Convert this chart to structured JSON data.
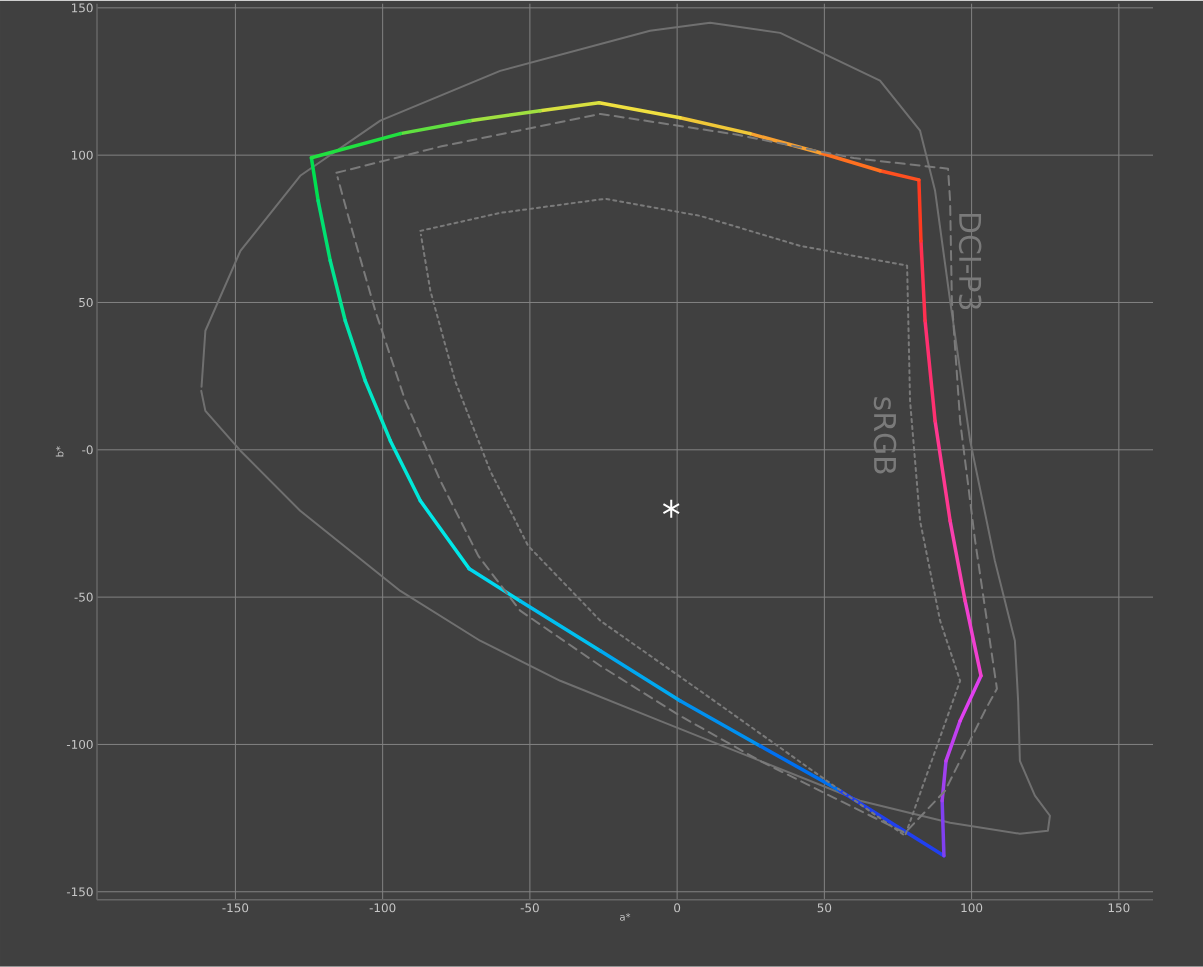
{
  "chart_data": {
    "type": "line",
    "xlabel": "a*",
    "ylabel": "b*",
    "xlim": [
      -197,
      161.6
    ],
    "ylim": [
      -152.7,
      151.4
    ],
    "xticks": [
      -150,
      -100,
      -50,
      0,
      50,
      100,
      150
    ],
    "yticks": [
      -150,
      -100,
      -50,
      {
        "value": 0,
        "label": "-0"
      },
      50,
      100,
      150
    ],
    "grid": true,
    "series": [
      {
        "color": "#707070",
        "line_style": "solid",
        "x": [
          -161.6,
          -160.2,
          -148.3,
          -128,
          -94,
          -66.9,
          -39.7,
          -5.8,
          28.2,
          62.1,
          92.7,
          116.4,
          125.9,
          126.6,
          121.5,
          116.4,
          115.8,
          114.7,
          107.9,
          99.5,
          92.7,
          87.6,
          82.5,
          68.9,
          35,
          11.2,
          -9.2,
          -60.1,
          -100.8,
          -128,
          -148.3,
          -160.2,
          -161.5
        ],
        "values": [
          20,
          13.2,
          -0.3,
          -20.7,
          -47.9,
          -64.8,
          -78.4,
          -92,
          -105.6,
          -119.1,
          -126.6,
          -130.3,
          -129.3,
          -124.2,
          -117.4,
          -105.6,
          -85.2,
          -64.8,
          -37.7,
          3.1,
          50.6,
          87.9,
          108.3,
          125.3,
          141.5,
          144.9,
          142.2,
          128.6,
          111.7,
          93,
          67.5,
          40.4,
          21.4
        ]
      },
      {
        "color": "#00e050",
        "x": [
          -124.2,
          -121.9
        ],
        "values": [
          99.1,
          84.5
        ]
      },
      {
        "color": "#00e070",
        "x": [
          -121.9,
          -117.8
        ],
        "values": [
          84.5,
          64.2
        ]
      },
      {
        "color": "#00e490",
        "x": [
          -117.8,
          -112.7
        ],
        "values": [
          64.2,
          43.8
        ]
      },
      {
        "color": "#00e6b0",
        "x": [
          -112.7,
          -105.9
        ],
        "values": [
          43.8,
          23.4
        ]
      },
      {
        "color": "#00e8c8",
        "x": [
          -105.9,
          -97.4
        ],
        "values": [
          23.4,
          3.1
        ]
      },
      {
        "color": "#00e8d8",
        "x": [
          -97.4,
          -87.2
        ],
        "values": [
          3.1,
          -17.3
        ]
      },
      {
        "color": "#00e8e8",
        "x": [
          -87.2,
          -70.6
        ],
        "values": [
          -17.3,
          -40.4
        ]
      },
      {
        "color": "#00d8f0",
        "x": [
          -70.6,
          -53.3
        ],
        "values": [
          -40.4,
          -51.3
        ]
      },
      {
        "color": "#00c0f0",
        "x": [
          -53.3,
          -26.1
        ],
        "values": [
          -51.3,
          -68.2
        ]
      },
      {
        "color": "#00a8f0",
        "x": [
          -26.1,
          1
        ],
        "values": [
          -68.2,
          -85.2
        ]
      },
      {
        "color": "#0090f0",
        "x": [
          1,
          28.2
        ],
        "values": [
          -85.2,
          -100.5
        ]
      },
      {
        "color": "#0070f0",
        "x": [
          28.2,
          55.3
        ],
        "values": [
          -100.5,
          -115.7
        ]
      },
      {
        "color": "#2040f0",
        "x": [
          55.3,
          90.6
        ],
        "values": [
          -115.7,
          -137.8
        ]
      },
      {
        "color": "#8040f0",
        "x": [
          90.6,
          90
        ],
        "values": [
          -137.8,
          -119.1
        ]
      },
      {
        "color": "#a040f0",
        "x": [
          90,
          91.3
        ],
        "values": [
          -119.1,
          -105.6
        ]
      },
      {
        "color": "#c040f0",
        "x": [
          91.3,
          96.1
        ],
        "values": [
          -105.6,
          -92
        ]
      },
      {
        "color": "#e040f0",
        "x": [
          96.1,
          103.2
        ],
        "values": [
          -92,
          -76.7
        ]
      },
      {
        "color": "#f040d0",
        "x": [
          103.2,
          97.8
        ],
        "values": [
          -76.7,
          -51.3
        ]
      },
      {
        "color": "#f840b0",
        "x": [
          97.8,
          92.7
        ],
        "values": [
          -51.3,
          -24.1
        ]
      },
      {
        "color": "#ff3890",
        "x": [
          92.7,
          87.6
        ],
        "values": [
          -24.1,
          9.8
        ]
      },
      {
        "color": "#ff3070",
        "x": [
          87.6,
          84.2
        ],
        "values": [
          9.8,
          43.8
        ]
      },
      {
        "color": "#ff3050",
        "x": [
          84.2,
          82.8
        ],
        "values": [
          43.8,
          70.9
        ]
      },
      {
        "color": "#ff3a20",
        "x": [
          82.8,
          82.1
        ],
        "values": [
          70.9,
          91.6
        ]
      },
      {
        "color": "#ff5020",
        "x": [
          82.1,
          68.9
        ],
        "values": [
          91.6,
          94.7
        ]
      },
      {
        "color": "#ff7020",
        "x": [
          68.9,
          48.5
        ],
        "values": [
          94.7,
          100.8
        ]
      },
      {
        "color": "#f8a030",
        "x": [
          48.5,
          24.8
        ],
        "values": [
          100.8,
          107.3
        ]
      },
      {
        "color": "#f0c838",
        "x": [
          24.8,
          1
        ],
        "values": [
          107.3,
          112.7
        ]
      },
      {
        "color": "#f0e040",
        "x": [
          1,
          -26.5
        ],
        "values": [
          112.7,
          117.8
        ]
      },
      {
        "color": "#d8e040",
        "x": [
          -26.5,
          -46.5
        ],
        "values": [
          117.8,
          115.1
        ]
      },
      {
        "color": "#a0e040",
        "x": [
          -46.5,
          -70.3
        ],
        "values": [
          115.1,
          111.7
        ]
      },
      {
        "color": "#60e040",
        "x": [
          -70.3,
          -94
        ],
        "values": [
          111.7,
          107.3
        ]
      },
      {
        "color": "#20e040",
        "x": [
          -94,
          -124.2
        ],
        "values": [
          107.3,
          99.1
        ]
      },
      {
        "name": "DCI-P3",
        "color": "#7a7a7a",
        "line_style": "dashed",
        "x": [
          -115.7,
          -80,
          -26,
          20,
          60,
          92,
          92.7,
          93.3,
          96.1,
          101.2,
          106.2,
          108.6,
          104.5,
          91,
          77.4,
          55.3,
          28.2,
          1,
          -26.1,
          -53.3,
          -67.5,
          -80.4,
          -92.3,
          -102.5,
          -110.3,
          -115.3
        ],
        "values": [
          94,
          103,
          114,
          107,
          99,
          95.4,
          84.5,
          50.6,
          9.8,
          -30.9,
          -64.8,
          -81.1,
          -88.6,
          -115.7,
          -130,
          -119.1,
          -105.6,
          -90.3,
          -73.3,
          -54.6,
          -36,
          -10.5,
          16.6,
          47.2,
          74.3,
          92.5
        ]
      },
      {
        "name": "sRGB",
        "color": "#7a7a7a",
        "line_style": "dotted",
        "x": [
          -87.2,
          -60.1,
          -24.4,
          7.8,
          41.8,
          78.1,
          79.1,
          82.5,
          89.3,
          96.1,
          77.4,
          48.5,
          7.8,
          -26.1,
          -50.6,
          -63.5,
          -75.4,
          -83.8,
          -87
        ],
        "values": [
          74.3,
          80.4,
          85.2,
          79.4,
          69.2,
          62.5,
          16.6,
          -24.1,
          -58,
          -78.4,
          -131,
          -110.7,
          -81.8,
          -58,
          -32.6,
          -7.1,
          23.4,
          54,
          73
        ]
      },
      {
        "type": "scatter",
        "marker": "cross",
        "color": "#ffffff",
        "x": [
          -2
        ],
        "values": [
          -20
        ]
      }
    ]
  }
}
